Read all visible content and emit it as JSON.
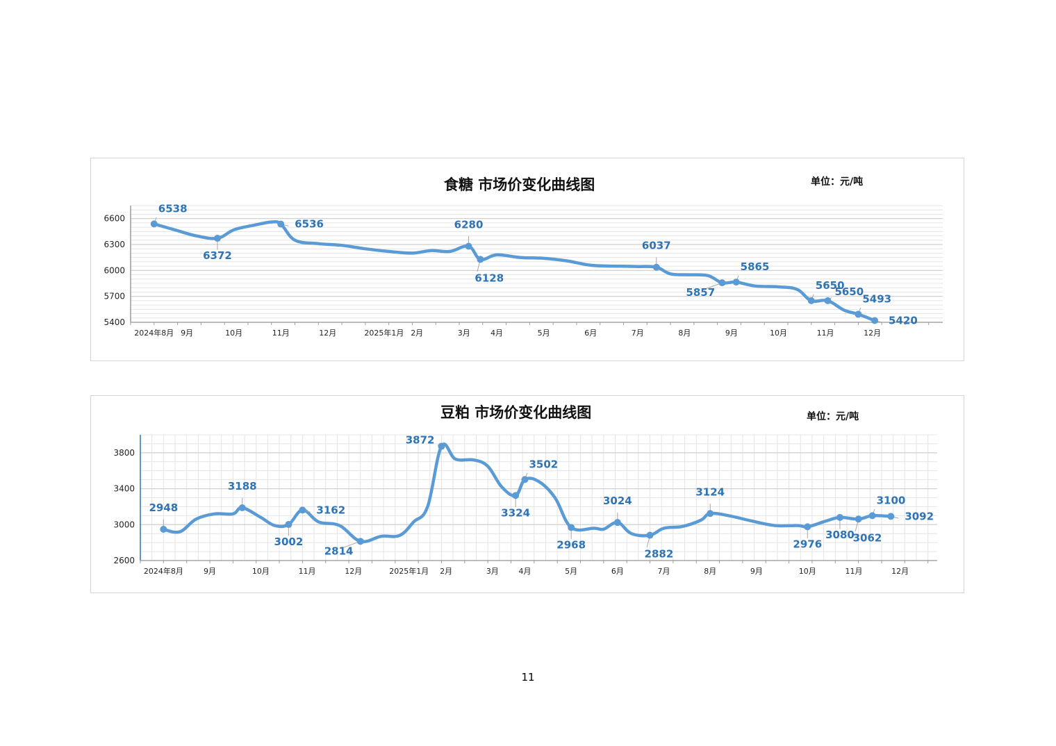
{
  "page": {
    "number": "11"
  },
  "charts": [
    {
      "title": "食糖  市场价变化曲线图",
      "unit": "单位：元/吨"
    },
    {
      "title": "豆粕  市场价变化曲线图",
      "unit": "单位：元/吨"
    }
  ],
  "colors": {
    "series": "#5b9bd5",
    "label": "#2e74b5",
    "grid": "#e4e4e4",
    "major_grid": "#cfcfcf"
  },
  "chart_data": [
    {
      "type": "line",
      "title": "食糖  市场价变化曲线图",
      "unit": "单位：元/吨",
      "ylim": [
        5400,
        6750
      ],
      "yticks": [
        5400,
        5700,
        6000,
        6300,
        6600
      ],
      "xlim": [
        0,
        17.3
      ],
      "x_tick_labels": [
        {
          "x": 0.5,
          "label": "2024年8月"
        },
        {
          "x": 1.2,
          "label": "9月"
        },
        {
          "x": 2.2,
          "label": "10月"
        },
        {
          "x": 3.2,
          "label": "11月"
        },
        {
          "x": 4.2,
          "label": "12月"
        },
        {
          "x": 5.4,
          "label": "2025年1月"
        },
        {
          "x": 6.1,
          "label": "2月"
        },
        {
          "x": 7.1,
          "label": "3月"
        },
        {
          "x": 7.8,
          "label": "4月"
        },
        {
          "x": 8.8,
          "label": "5月"
        },
        {
          "x": 9.8,
          "label": "6月"
        },
        {
          "x": 10.8,
          "label": "7月"
        },
        {
          "x": 11.8,
          "label": "8月"
        },
        {
          "x": 12.8,
          "label": "9月"
        },
        {
          "x": 13.8,
          "label": "10月"
        },
        {
          "x": 14.8,
          "label": "11月"
        },
        {
          "x": 15.8,
          "label": "12月"
        }
      ],
      "series": [
        {
          "points": [
            {
              "x": 0.5,
              "y": 6538
            },
            {
              "x": 1.0,
              "y": 6460
            },
            {
              "x": 1.4,
              "y": 6400
            },
            {
              "x": 1.85,
              "y": 6372
            },
            {
              "x": 2.2,
              "y": 6470
            },
            {
              "x": 2.6,
              "y": 6520
            },
            {
              "x": 3.0,
              "y": 6560
            },
            {
              "x": 3.2,
              "y": 6536
            },
            {
              "x": 3.5,
              "y": 6350
            },
            {
              "x": 4.0,
              "y": 6310
            },
            {
              "x": 4.5,
              "y": 6290
            },
            {
              "x": 5.0,
              "y": 6250
            },
            {
              "x": 5.5,
              "y": 6220
            },
            {
              "x": 6.0,
              "y": 6200
            },
            {
              "x": 6.4,
              "y": 6230
            },
            {
              "x": 6.8,
              "y": 6220
            },
            {
              "x": 7.2,
              "y": 6280
            },
            {
              "x": 7.45,
              "y": 6128
            },
            {
              "x": 7.8,
              "y": 6180
            },
            {
              "x": 8.3,
              "y": 6150
            },
            {
              "x": 8.8,
              "y": 6140
            },
            {
              "x": 9.3,
              "y": 6110
            },
            {
              "x": 9.8,
              "y": 6060
            },
            {
              "x": 10.3,
              "y": 6050
            },
            {
              "x": 10.8,
              "y": 6045
            },
            {
              "x": 11.2,
              "y": 6037
            },
            {
              "x": 11.5,
              "y": 5960
            },
            {
              "x": 11.9,
              "y": 5950
            },
            {
              "x": 12.3,
              "y": 5940
            },
            {
              "x": 12.6,
              "y": 5857
            },
            {
              "x": 12.9,
              "y": 5865
            },
            {
              "x": 13.3,
              "y": 5820
            },
            {
              "x": 13.8,
              "y": 5810
            },
            {
              "x": 14.2,
              "y": 5780
            },
            {
              "x": 14.5,
              "y": 5650
            },
            {
              "x": 14.85,
              "y": 5650
            },
            {
              "x": 15.2,
              "y": 5540
            },
            {
              "x": 15.5,
              "y": 5493
            },
            {
              "x": 15.85,
              "y": 5420
            }
          ],
          "markers": [
            {
              "x": 0.5,
              "y": 6538,
              "label": "6538",
              "pos": "above-right"
            },
            {
              "x": 1.85,
              "y": 6372,
              "label": "6372",
              "pos": "below"
            },
            {
              "x": 3.2,
              "y": 6536,
              "label": "6536",
              "pos": "right"
            },
            {
              "x": 7.2,
              "y": 6280,
              "label": "6280",
              "pos": "above"
            },
            {
              "x": 7.45,
              "y": 6128,
              "label": "6128",
              "pos": "below-right"
            },
            {
              "x": 11.2,
              "y": 6037,
              "label": "6037",
              "pos": "above"
            },
            {
              "x": 12.6,
              "y": 5857,
              "label": "5857",
              "pos": "below-left"
            },
            {
              "x": 12.9,
              "y": 5865,
              "label": "5865",
              "pos": "above-right"
            },
            {
              "x": 14.5,
              "y": 5650,
              "label": "5650",
              "pos": "above-right"
            },
            {
              "x": 14.85,
              "y": 5650,
              "label": "5650",
              "pos": "right-up"
            },
            {
              "x": 15.5,
              "y": 5493,
              "label": "5493",
              "pos": "above-right"
            },
            {
              "x": 15.85,
              "y": 5420,
              "label": "5420",
              "pos": "right"
            }
          ]
        }
      ]
    },
    {
      "type": "line",
      "title": "豆粕  市场价变化曲线图",
      "unit": "单位：元/吨",
      "ylim": [
        2600,
        4000
      ],
      "yticks": [
        2600,
        3000,
        3400,
        3800
      ],
      "xlim": [
        0,
        17.2
      ],
      "x_tick_labels": [
        {
          "x": 0.5,
          "label": "2024年8月"
        },
        {
          "x": 1.5,
          "label": "9月"
        },
        {
          "x": 2.6,
          "label": "10月"
        },
        {
          "x": 3.6,
          "label": "11月"
        },
        {
          "x": 4.6,
          "label": "12月"
        },
        {
          "x": 5.8,
          "label": "2025年1月"
        },
        {
          "x": 6.6,
          "label": "2月"
        },
        {
          "x": 7.6,
          "label": "3月"
        },
        {
          "x": 8.3,
          "label": "4月"
        },
        {
          "x": 9.3,
          "label": "5月"
        },
        {
          "x": 10.3,
          "label": "6月"
        },
        {
          "x": 11.3,
          "label": "7月"
        },
        {
          "x": 12.3,
          "label": "8月"
        },
        {
          "x": 13.3,
          "label": "9月"
        },
        {
          "x": 14.4,
          "label": "10月"
        },
        {
          "x": 15.4,
          "label": "11月"
        },
        {
          "x": 16.4,
          "label": "12月"
        }
      ],
      "series": [
        {
          "points": [
            {
              "x": 0.5,
              "y": 2948
            },
            {
              "x": 0.85,
              "y": 2920
            },
            {
              "x": 1.2,
              "y": 3060
            },
            {
              "x": 1.6,
              "y": 3120
            },
            {
              "x": 2.0,
              "y": 3120
            },
            {
              "x": 2.2,
              "y": 3188
            },
            {
              "x": 2.6,
              "y": 3080
            },
            {
              "x": 2.9,
              "y": 2990
            },
            {
              "x": 3.2,
              "y": 3002
            },
            {
              "x": 3.5,
              "y": 3162
            },
            {
              "x": 3.85,
              "y": 3030
            },
            {
              "x": 4.3,
              "y": 2990
            },
            {
              "x": 4.75,
              "y": 2814
            },
            {
              "x": 5.2,
              "y": 2870
            },
            {
              "x": 5.6,
              "y": 2880
            },
            {
              "x": 5.9,
              "y": 3030
            },
            {
              "x": 6.2,
              "y": 3200
            },
            {
              "x": 6.5,
              "y": 3872
            },
            {
              "x": 6.8,
              "y": 3730
            },
            {
              "x": 7.2,
              "y": 3720
            },
            {
              "x": 7.5,
              "y": 3650
            },
            {
              "x": 7.8,
              "y": 3420
            },
            {
              "x": 8.1,
              "y": 3324
            },
            {
              "x": 8.3,
              "y": 3502
            },
            {
              "x": 8.6,
              "y": 3480
            },
            {
              "x": 8.95,
              "y": 3300
            },
            {
              "x": 9.3,
              "y": 2968
            },
            {
              "x": 9.8,
              "y": 2960
            },
            {
              "x": 10.0,
              "y": 2950
            },
            {
              "x": 10.3,
              "y": 3024
            },
            {
              "x": 10.6,
              "y": 2900
            },
            {
              "x": 11.0,
              "y": 2882
            },
            {
              "x": 11.3,
              "y": 2960
            },
            {
              "x": 11.7,
              "y": 2980
            },
            {
              "x": 12.1,
              "y": 3050
            },
            {
              "x": 12.3,
              "y": 3124
            },
            {
              "x": 12.7,
              "y": 3100
            },
            {
              "x": 13.2,
              "y": 3040
            },
            {
              "x": 13.7,
              "y": 2990
            },
            {
              "x": 14.2,
              "y": 2990
            },
            {
              "x": 14.4,
              "y": 2976
            },
            {
              "x": 14.8,
              "y": 3040
            },
            {
              "x": 15.1,
              "y": 3080
            },
            {
              "x": 15.5,
              "y": 3062
            },
            {
              "x": 15.8,
              "y": 3100
            },
            {
              "x": 16.2,
              "y": 3092
            }
          ],
          "markers": [
            {
              "x": 0.5,
              "y": 2948,
              "label": "2948",
              "pos": "above"
            },
            {
              "x": 2.2,
              "y": 3188,
              "label": "3188",
              "pos": "above"
            },
            {
              "x": 3.2,
              "y": 3002,
              "label": "3002",
              "pos": "below"
            },
            {
              "x": 3.5,
              "y": 3162,
              "label": "3162",
              "pos": "right"
            },
            {
              "x": 4.75,
              "y": 2814,
              "label": "2814",
              "pos": "below-left"
            },
            {
              "x": 6.5,
              "y": 3872,
              "label": "3872",
              "pos": "left"
            },
            {
              "x": 8.1,
              "y": 3324,
              "label": "3324",
              "pos": "below"
            },
            {
              "x": 8.3,
              "y": 3502,
              "label": "3502",
              "pos": "above-right"
            },
            {
              "x": 9.3,
              "y": 2968,
              "label": "2968",
              "pos": "below"
            },
            {
              "x": 10.3,
              "y": 3024,
              "label": "3024",
              "pos": "above"
            },
            {
              "x": 11.0,
              "y": 2882,
              "label": "2882",
              "pos": "below-right"
            },
            {
              "x": 12.3,
              "y": 3124,
              "label": "3124",
              "pos": "above"
            },
            {
              "x": 14.4,
              "y": 2976,
              "label": "2976",
              "pos": "below"
            },
            {
              "x": 15.1,
              "y": 3080,
              "label": "3080",
              "pos": "below"
            },
            {
              "x": 15.5,
              "y": 3062,
              "label": "3062",
              "pos": "below-right"
            },
            {
              "x": 15.8,
              "y": 3100,
              "label": "3100",
              "pos": "above-right"
            },
            {
              "x": 16.2,
              "y": 3092,
              "label": "3092",
              "pos": "right"
            }
          ]
        }
      ]
    }
  ]
}
